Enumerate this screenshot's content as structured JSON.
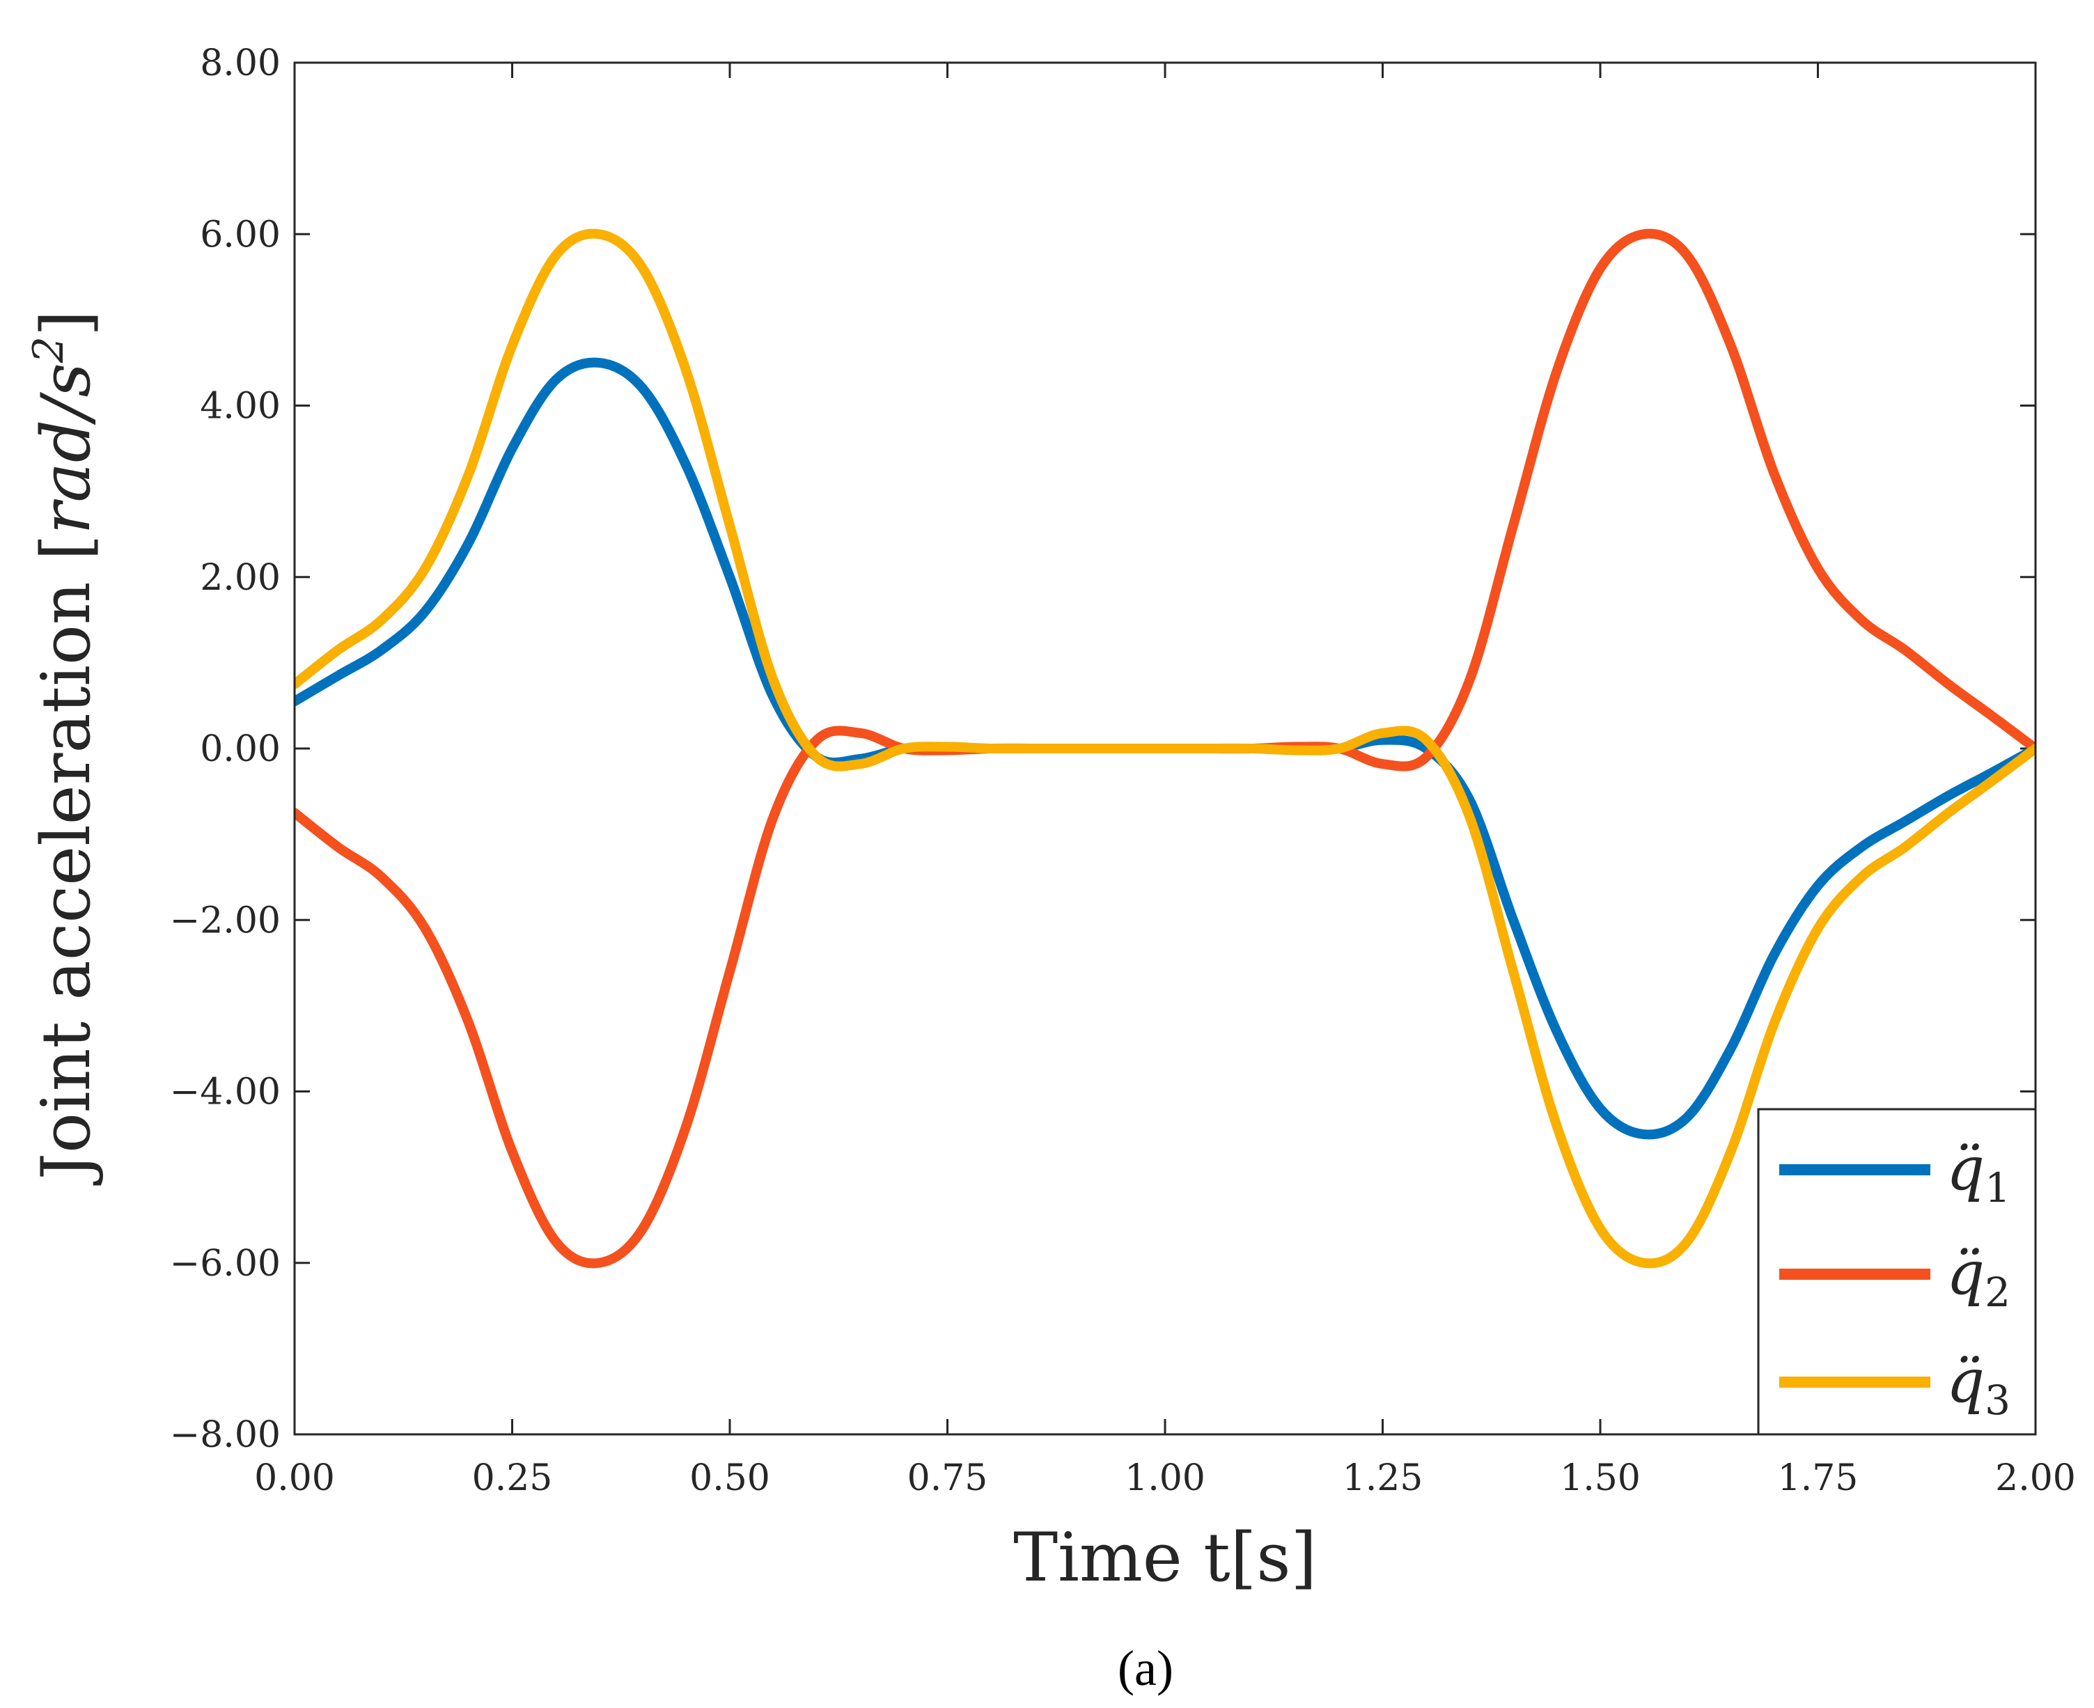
{
  "chart_data": {
    "type": "line",
    "title": "",
    "xlabel": "Time t[s]",
    "ylabel": "Joint acceleration [rad/s²]",
    "ylabel_parts": {
      "prefix": "Joint acceleration [",
      "unit": "rad/s",
      "sup": "2",
      "suffix": "]"
    },
    "xlim": [
      0,
      2
    ],
    "ylim": [
      -8,
      8
    ],
    "xticks": [
      0,
      0.25,
      0.5,
      0.75,
      1.0,
      1.25,
      1.5,
      1.75,
      2.0
    ],
    "xtick_labels": [
      "0.00",
      "0.25",
      "0.50",
      "0.75",
      "1.00",
      "1.25",
      "1.50",
      "1.75",
      "2.00"
    ],
    "yticks": [
      -8,
      -6,
      -4,
      -2,
      0,
      2,
      4,
      6,
      8
    ],
    "ytick_labels": [
      "−8.00",
      "−6.00",
      "−4.00",
      "−2.00",
      "0.00",
      "2.00",
      "4.00",
      "6.00",
      "8.00"
    ],
    "grid": false,
    "legend_position": "bottom-right",
    "caption": "(a)",
    "x": [
      0.0,
      0.05,
      0.1,
      0.15,
      0.2,
      0.25,
      0.3,
      0.35,
      0.4,
      0.45,
      0.5,
      0.55,
      0.6,
      0.65,
      0.7,
      0.75,
      0.8,
      0.85,
      0.9,
      0.95,
      1.0,
      1.05,
      1.1,
      1.15,
      1.2,
      1.25,
      1.3,
      1.35,
      1.4,
      1.45,
      1.5,
      1.55,
      1.6,
      1.65,
      1.7,
      1.75,
      1.8,
      1.85,
      1.9,
      1.95,
      2.0
    ],
    "series": [
      {
        "name": "q1",
        "label": "q̈",
        "subscript": "1",
        "color": "#0072BD",
        "values": [
          0.55,
          0.85,
          1.15,
          1.6,
          2.4,
          3.5,
          4.3,
          4.5,
          4.2,
          3.3,
          2.0,
          0.6,
          -0.1,
          -0.12,
          0.0,
          0.0,
          0.0,
          0.0,
          0.0,
          0.0,
          0.0,
          0.0,
          0.0,
          0.0,
          0.0,
          0.1,
          0.0,
          -0.6,
          -2.0,
          -3.3,
          -4.2,
          -4.5,
          -4.3,
          -3.5,
          -2.4,
          -1.6,
          -1.15,
          -0.85,
          -0.55,
          -0.28,
          0.0
        ]
      },
      {
        "name": "q2",
        "label": "q̈",
        "subscript": "2",
        "color": "#F4511E",
        "values": [
          -0.75,
          -1.15,
          -1.5,
          -2.1,
          -3.2,
          -4.7,
          -5.75,
          -6.0,
          -5.6,
          -4.4,
          -2.6,
          -0.8,
          0.1,
          0.18,
          0.0,
          -0.02,
          0.0,
          0.0,
          0.0,
          0.0,
          0.0,
          0.0,
          0.0,
          0.02,
          0.0,
          -0.18,
          -0.1,
          0.8,
          2.6,
          4.4,
          5.6,
          6.0,
          5.75,
          4.7,
          3.2,
          2.1,
          1.5,
          1.15,
          0.75,
          0.38,
          0.0
        ]
      },
      {
        "name": "q3",
        "label": "q̈",
        "subscript": "3",
        "color": "#F9B000",
        "values": [
          0.75,
          1.15,
          1.5,
          2.1,
          3.2,
          4.7,
          5.75,
          6.0,
          5.6,
          4.4,
          2.6,
          0.8,
          -0.1,
          -0.18,
          0.0,
          0.02,
          0.0,
          0.0,
          0.0,
          0.0,
          0.0,
          0.0,
          0.0,
          -0.02,
          0.0,
          0.18,
          0.1,
          -0.8,
          -2.6,
          -4.4,
          -5.6,
          -6.0,
          -5.75,
          -4.7,
          -3.2,
          -2.1,
          -1.5,
          -1.15,
          -0.75,
          -0.38,
          0.0
        ]
      }
    ]
  }
}
